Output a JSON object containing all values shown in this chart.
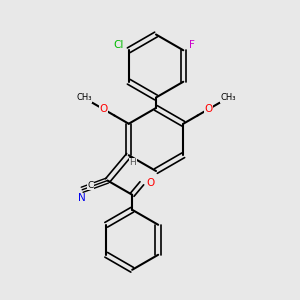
{
  "background_color": "#e8e8e8",
  "bond_color": "#000000",
  "lw": 1.5,
  "lw_double": 1.2,
  "figsize": [
    3.0,
    3.0
  ],
  "dpi": 100,
  "colors": {
    "Cl": "#00bb00",
    "F": "#cc00cc",
    "O": "#ff0000",
    "N": "#0000ee",
    "C": "#000000",
    "H": "#555555"
  },
  "font_size": 7.5,
  "font_size_small": 6.5
}
